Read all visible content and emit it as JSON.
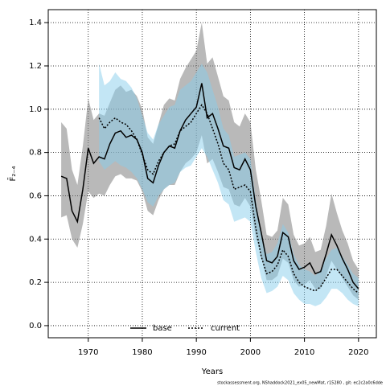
{
  "chart_data": {
    "type": "line",
    "xlabel": "Years",
    "ylabel": "F̄₂₋₄",
    "footnote": "stockassessment.org, NShaddock2021_ex05_newMat, r15280 , git: ec2c2a0c6dde",
    "xlim": [
      1962.6,
      2023.3
    ],
    "ylim": [
      -0.056,
      1.46
    ],
    "xticks": [
      1970,
      1980,
      1990,
      2000,
      2010,
      2020
    ],
    "yticks": [
      {
        "value": 0,
        "label": "0.0"
      },
      0.2,
      0.4,
      0.6,
      0.8,
      {
        "value": 1,
        "label": "1.0"
      },
      1.2,
      1.4
    ],
    "grid": true,
    "legend": "bottom",
    "series": [
      {
        "name": "base",
        "color": "#000000",
        "band_color": "#808080",
        "dash": false,
        "x": [
          1965,
          1966,
          1967,
          1968,
          1969,
          1970,
          1971,
          1972,
          1973,
          1974,
          1975,
          1976,
          1977,
          1978,
          1979,
          1980,
          1981,
          1982,
          1983,
          1984,
          1985,
          1986,
          1987,
          1988,
          1989,
          1990,
          1991,
          1992,
          1993,
          1994,
          1995,
          1996,
          1997,
          1998,
          1999,
          2000,
          2001,
          2002,
          2003,
          2004,
          2005,
          2006,
          2007,
          2008,
          2009,
          2010,
          2011,
          2012,
          2013,
          2014,
          2015,
          2016,
          2017,
          2018,
          2019,
          2020
        ],
        "values": [
          0.69,
          0.68,
          0.53,
          0.48,
          0.63,
          0.82,
          0.75,
          0.78,
          0.77,
          0.84,
          0.89,
          0.9,
          0.87,
          0.88,
          0.86,
          0.8,
          0.68,
          0.66,
          0.74,
          0.8,
          0.83,
          0.82,
          0.9,
          0.95,
          0.98,
          1.01,
          1.12,
          0.96,
          0.98,
          0.91,
          0.83,
          0.82,
          0.73,
          0.72,
          0.77,
          0.72,
          0.55,
          0.43,
          0.3,
          0.29,
          0.32,
          0.43,
          0.41,
          0.3,
          0.26,
          0.27,
          0.29,
          0.24,
          0.25,
          0.33,
          0.42,
          0.37,
          0.31,
          0.26,
          0.2,
          0.17
        ],
        "upper": [
          0.94,
          0.91,
          0.72,
          0.65,
          0.83,
          1.05,
          0.95,
          0.98,
          0.97,
          1.03,
          1.09,
          1.11,
          1.08,
          1.09,
          1.06,
          1.0,
          0.87,
          0.84,
          0.93,
          1.02,
          1.05,
          1.04,
          1.14,
          1.19,
          1.23,
          1.27,
          1.4,
          1.21,
          1.24,
          1.15,
          1.06,
          1.04,
          0.94,
          0.92,
          0.98,
          0.94,
          0.72,
          0.58,
          0.42,
          0.41,
          0.44,
          0.59,
          0.56,
          0.42,
          0.37,
          0.38,
          0.41,
          0.34,
          0.35,
          0.46,
          0.61,
          0.52,
          0.44,
          0.38,
          0.3,
          0.26
        ],
        "lower": [
          0.5,
          0.51,
          0.4,
          0.36,
          0.47,
          0.62,
          0.59,
          0.61,
          0.6,
          0.65,
          0.69,
          0.7,
          0.68,
          0.68,
          0.67,
          0.62,
          0.53,
          0.51,
          0.58,
          0.63,
          0.65,
          0.65,
          0.71,
          0.75,
          0.77,
          0.8,
          0.88,
          0.75,
          0.77,
          0.71,
          0.64,
          0.63,
          0.56,
          0.55,
          0.59,
          0.55,
          0.41,
          0.32,
          0.21,
          0.21,
          0.23,
          0.31,
          0.29,
          0.21,
          0.18,
          0.19,
          0.21,
          0.17,
          0.17,
          0.23,
          0.3,
          0.26,
          0.22,
          0.18,
          0.14,
          0.12
        ]
      },
      {
        "name": "current",
        "color": "#000000",
        "band_color": "#87ceeb",
        "dash": true,
        "x": [
          1972,
          1973,
          1974,
          1975,
          1976,
          1977,
          1978,
          1979,
          1980,
          1981,
          1982,
          1983,
          1984,
          1985,
          1986,
          1987,
          1988,
          1989,
          1990,
          1991,
          1992,
          1993,
          1994,
          1995,
          1996,
          1997,
          1998,
          1999,
          2000,
          2001,
          2002,
          2003,
          2004,
          2005,
          2006,
          2007,
          2008,
          2009,
          2010,
          2011,
          2012,
          2013,
          2014,
          2015,
          2016,
          2017,
          2018,
          2019,
          2020
        ],
        "values": [
          0.96,
          0.91,
          0.94,
          0.96,
          0.94,
          0.93,
          0.9,
          0.86,
          0.79,
          0.72,
          0.7,
          0.76,
          0.8,
          0.83,
          0.84,
          0.9,
          0.92,
          0.94,
          0.98,
          1.02,
          0.98,
          0.91,
          0.84,
          0.75,
          0.72,
          0.63,
          0.64,
          0.65,
          0.62,
          0.45,
          0.32,
          0.24,
          0.25,
          0.28,
          0.35,
          0.32,
          0.24,
          0.2,
          0.18,
          0.17,
          0.16,
          0.18,
          0.22,
          0.26,
          0.26,
          0.23,
          0.2,
          0.17,
          0.15
        ],
        "upper": [
          1.21,
          1.11,
          1.13,
          1.17,
          1.14,
          1.13,
          1.1,
          1.05,
          0.97,
          0.89,
          0.86,
          0.93,
          0.97,
          1.01,
          1.02,
          1.09,
          1.11,
          1.13,
          1.17,
          1.21,
          1.17,
          1.09,
          1.01,
          0.91,
          0.88,
          0.78,
          0.79,
          0.8,
          0.77,
          0.58,
          0.43,
          0.33,
          0.34,
          0.38,
          0.47,
          0.43,
          0.33,
          0.28,
          0.26,
          0.25,
          0.23,
          0.26,
          0.31,
          0.35,
          0.36,
          0.32,
          0.28,
          0.24,
          0.22
        ],
        "lower": [
          0.76,
          0.72,
          0.74,
          0.76,
          0.74,
          0.73,
          0.71,
          0.68,
          0.63,
          0.57,
          0.55,
          0.6,
          0.63,
          0.65,
          0.66,
          0.71,
          0.73,
          0.74,
          0.78,
          0.82,
          0.78,
          0.72,
          0.66,
          0.58,
          0.56,
          0.48,
          0.49,
          0.5,
          0.48,
          0.34,
          0.22,
          0.15,
          0.16,
          0.18,
          0.23,
          0.21,
          0.15,
          0.12,
          0.1,
          0.1,
          0.09,
          0.1,
          0.13,
          0.17,
          0.17,
          0.15,
          0.12,
          0.1,
          0.09
        ]
      }
    ]
  }
}
